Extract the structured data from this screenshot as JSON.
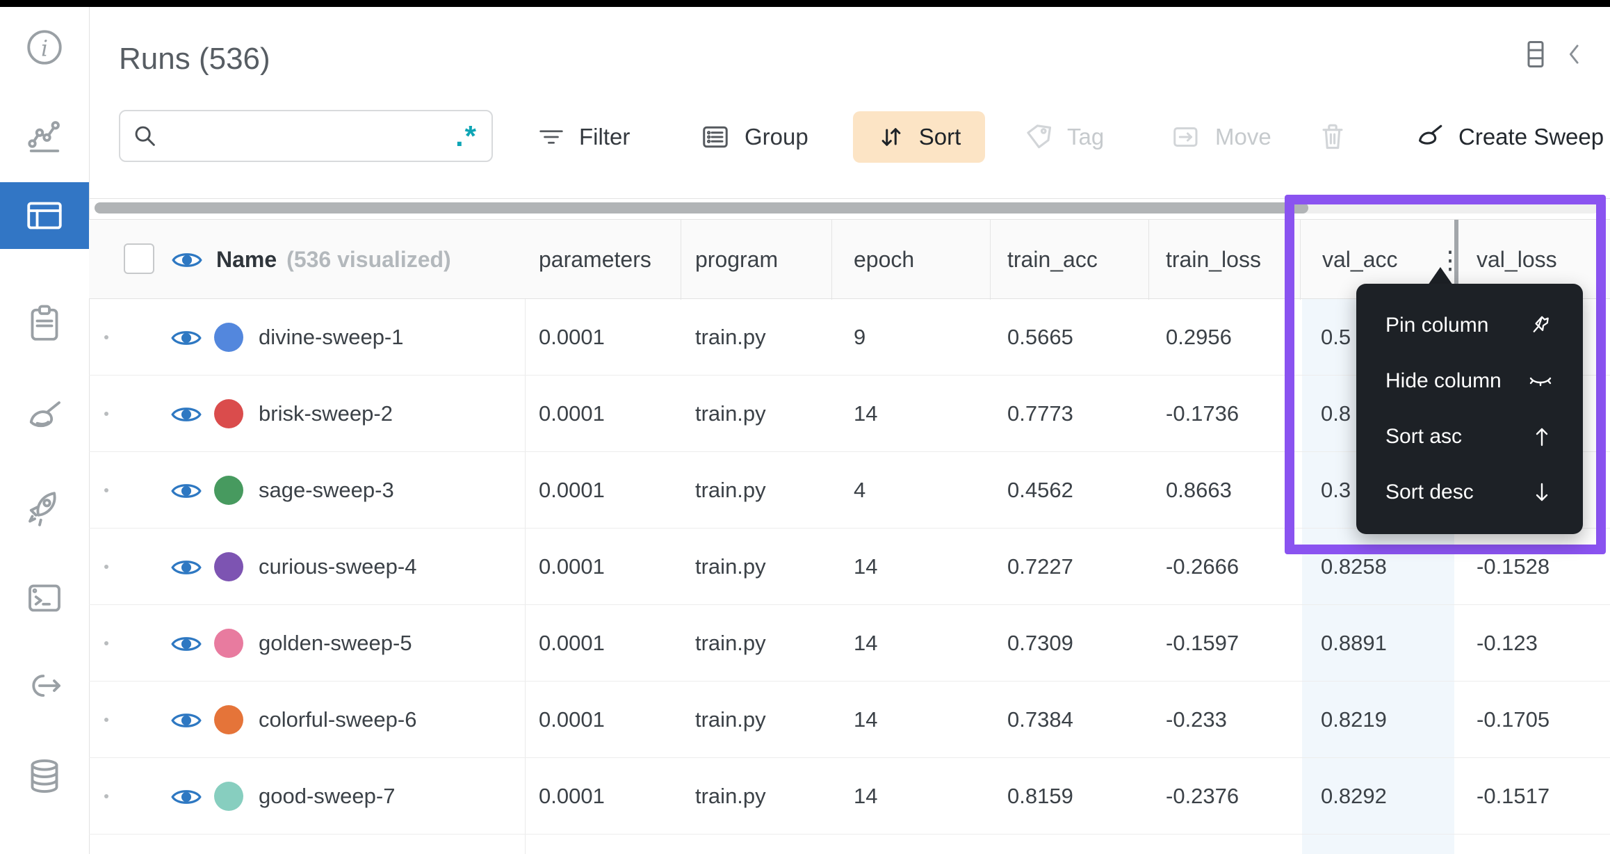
{
  "app": {
    "title": "Runs (536)"
  },
  "toolbar": {
    "search_placeholder": "",
    "regex_icon": ".*",
    "filter_label": "Filter",
    "group_label": "Group",
    "sort_label": "Sort",
    "tag_label": "Tag",
    "move_label": "Move",
    "create_sweep_label": "Create Sweep"
  },
  "table": {
    "name_header": "Name",
    "name_suffix": "(536 visualized)",
    "columns": [
      "parameters",
      "program",
      "epoch",
      "train_acc",
      "train_loss",
      "val_acc",
      "val_loss"
    ],
    "rows": [
      {
        "name": "divine-sweep-1",
        "color": "#5387DD",
        "parameters": "0.0001",
        "program": "train.py",
        "epoch": "9",
        "train_acc": "0.5665",
        "train_loss": "0.2956",
        "val_acc": "0.5",
        "val_loss": ""
      },
      {
        "name": "brisk-sweep-2",
        "color": "#DA4C4C",
        "parameters": "0.0001",
        "program": "train.py",
        "epoch": "14",
        "train_acc": "0.7773",
        "train_loss": "-0.1736",
        "val_acc": "0.8",
        "val_loss": ""
      },
      {
        "name": "sage-sweep-3",
        "color": "#479A5F",
        "parameters": "0.0001",
        "program": "train.py",
        "epoch": "4",
        "train_acc": "0.4562",
        "train_loss": "0.8663",
        "val_acc": "0.3",
        "val_loss": ""
      },
      {
        "name": "curious-sweep-4",
        "color": "#7D54B2",
        "parameters": "0.0001",
        "program": "train.py",
        "epoch": "14",
        "train_acc": "0.7227",
        "train_loss": "-0.2666",
        "val_acc": "0.8258",
        "val_loss": "-0.1528"
      },
      {
        "name": "golden-sweep-5",
        "color": "#E87B9F",
        "parameters": "0.0001",
        "program": "train.py",
        "epoch": "14",
        "train_acc": "0.7309",
        "train_loss": "-0.1597",
        "val_acc": "0.8891",
        "val_loss": "-0.123"
      },
      {
        "name": "colorful-sweep-6",
        "color": "#E57439",
        "parameters": "0.0001",
        "program": "train.py",
        "epoch": "14",
        "train_acc": "0.7384",
        "train_loss": "-0.233",
        "val_acc": "0.8219",
        "val_loss": "-0.1705"
      },
      {
        "name": "good-sweep-7",
        "color": "#87CEBF",
        "parameters": "0.0001",
        "program": "train.py",
        "epoch": "14",
        "train_acc": "0.8159",
        "train_loss": "-0.2376",
        "val_acc": "0.8292",
        "val_loss": "-0.1517"
      }
    ]
  },
  "context_menu": {
    "items": [
      {
        "label": "Pin column",
        "icon": "pin-icon"
      },
      {
        "label": "Hide column",
        "icon": "hide-icon"
      },
      {
        "label": "Sort asc",
        "icon": "arrow-up-icon"
      },
      {
        "label": "Sort desc",
        "icon": "arrow-down-icon"
      }
    ]
  },
  "colors": {
    "accent_purple": "#8A53F0",
    "sidebar_active_blue": "#3276C5",
    "sort_button_bg": "#FCE4C5",
    "regex_teal": "#0EA5B5",
    "val_col_highlight": "#F1F7FC",
    "eye_blue": "#2E78C2",
    "menu_bg": "#1D2126"
  }
}
